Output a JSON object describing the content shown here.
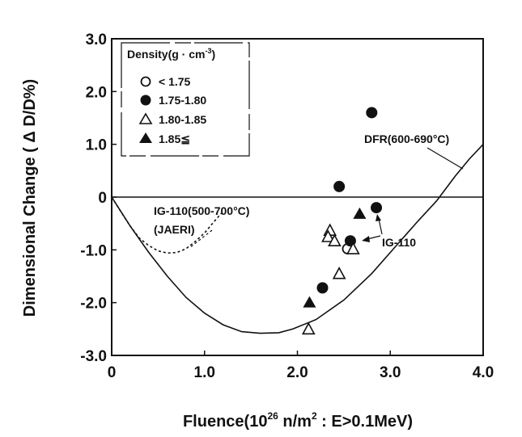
{
  "chart_data": {
    "type": "scatter",
    "xlabel_main": "Fluence(10",
    "xlabel_sup": "26",
    "xlabel_rest": " n/m",
    "xlabel_sup2": "2",
    "xlabel_end": " : E>0.1MeV)",
    "ylabel": "Dimensional Change ( Δ D/D%)",
    "xlim": [
      0,
      4.0
    ],
    "ylim": [
      -3.0,
      3.0
    ],
    "xticks": [
      "0",
      "1.0",
      "2.0",
      "3.0",
      "4.0"
    ],
    "xtick_values": [
      0,
      1.0,
      2.0,
      3.0,
      4.0
    ],
    "yticks": [
      "3.0",
      "2.0",
      "1.0",
      "0",
      "-1.0",
      "-2.0",
      "-3.0"
    ],
    "ytick_values": [
      3.0,
      2.0,
      1.0,
      0,
      -1.0,
      -2.0,
      -3.0
    ],
    "legend": {
      "title": "Density(g · cm",
      "title_sup": "-3",
      "title_end": ")",
      "entries": [
        "< 1.75",
        "1.75-1.80",
        "1.80-1.85",
        "1.85≦"
      ]
    },
    "series": [
      {
        "marker": "open-circle",
        "points": [
          [
            2.54,
            -0.98
          ]
        ]
      },
      {
        "marker": "filled-circle",
        "points": [
          [
            2.45,
            0.2
          ],
          [
            2.8,
            1.6
          ],
          [
            2.57,
            -0.83
          ],
          [
            2.85,
            -0.2
          ],
          [
            2.27,
            -1.72
          ]
        ]
      },
      {
        "marker": "open-triangle",
        "points": [
          [
            2.35,
            -0.63
          ],
          [
            2.33,
            -0.75
          ],
          [
            2.4,
            -0.83
          ],
          [
            2.6,
            -0.98
          ],
          [
            2.45,
            -1.45
          ],
          [
            2.12,
            -2.5
          ]
        ]
      },
      {
        "marker": "filled-triangle",
        "points": [
          [
            2.67,
            -0.32
          ],
          [
            2.13,
            -2.0
          ]
        ]
      }
    ],
    "curves": [
      {
        "name": "DFR(600-690°C)",
        "style": "solid",
        "points": [
          [
            0,
            0
          ],
          [
            0.2,
            -0.55
          ],
          [
            0.4,
            -1.05
          ],
          [
            0.6,
            -1.5
          ],
          [
            0.8,
            -1.9
          ],
          [
            1.0,
            -2.2
          ],
          [
            1.2,
            -2.42
          ],
          [
            1.4,
            -2.55
          ],
          [
            1.6,
            -2.58
          ],
          [
            1.8,
            -2.57
          ],
          [
            1.95,
            -2.5
          ],
          [
            2.2,
            -2.32
          ],
          [
            2.5,
            -1.95
          ],
          [
            2.8,
            -1.45
          ],
          [
            3.1,
            -0.85
          ],
          [
            3.3,
            -0.45
          ],
          [
            3.5,
            -0.07
          ],
          [
            3.7,
            0.4
          ],
          [
            3.85,
            0.72
          ],
          [
            4.0,
            1.0
          ]
        ]
      },
      {
        "name": "IG-110(500-700°C) (JAERI)",
        "style": "dashed",
        "points": [
          [
            0,
            0
          ],
          [
            0.1,
            -0.28
          ],
          [
            0.2,
            -0.55
          ],
          [
            0.3,
            -0.78
          ],
          [
            0.4,
            -0.92
          ],
          [
            0.5,
            -1.02
          ],
          [
            0.6,
            -1.06
          ],
          [
            0.7,
            -1.05
          ],
          [
            0.8,
            -0.98
          ],
          [
            0.9,
            -0.84
          ],
          [
            1.0,
            -0.68
          ],
          [
            1.1,
            -0.47
          ],
          [
            1.2,
            -0.27
          ]
        ]
      }
    ],
    "annotations": {
      "dfr_label": "DFR(600-690°C)",
      "ig110_line1": "IG-110(500-700°C)",
      "ig110_line2": "(JAERI)",
      "ig110_point_label": "IG-110"
    }
  }
}
